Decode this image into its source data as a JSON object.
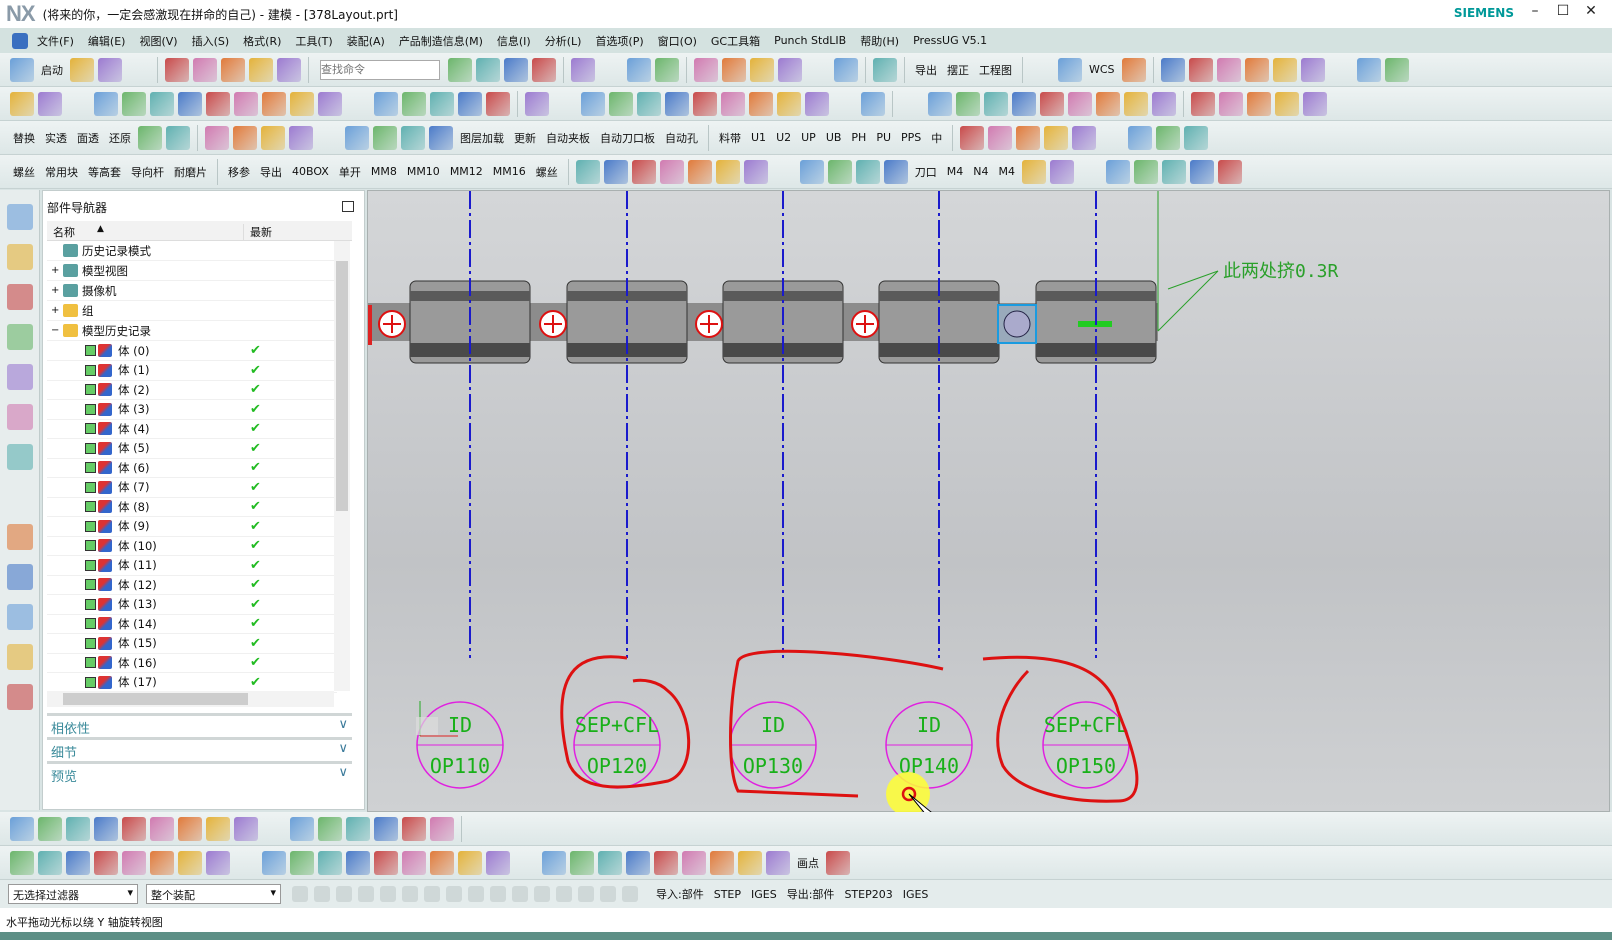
{
  "app": {
    "logo": "NX",
    "title": "(将来的你，一定会感激现在拼命的自己) - 建模 - [378Layout.prt]",
    "brand": "SIEMENS"
  },
  "window_controls": [
    "–",
    "☐",
    "✕"
  ],
  "menu": [
    "文件(F)",
    "编辑(E)",
    "视图(V)",
    "插入(S)",
    "格式(R)",
    "工具(T)",
    "装配(A)",
    "产品制造信息(M)",
    "信息(I)",
    "分析(L)",
    "首选项(P)",
    "窗口(O)",
    "GC工具箱",
    "Punch StdLIB",
    "帮助(H)",
    "PressUG V5.1"
  ],
  "toolbar1": {
    "start": "启动",
    "search_placeholder": "查找命令",
    "labels": [
      "导出",
      "摆正",
      "工程图",
      "WCS"
    ]
  },
  "toolbar3": {
    "left": [
      "替换",
      "实透",
      "面透",
      "还原"
    ],
    "labels": [
      "图层加载",
      "更新",
      "自动夹板",
      "自动刀口板",
      "自动孔",
      "料带",
      "U1",
      "U2",
      "UP",
      "UB",
      "PH",
      "PU",
      "PPS",
      "中"
    ]
  },
  "toolbar4": {
    "left": [
      "螺丝",
      "常用块",
      "等高套",
      "导向杆",
      "耐磨片"
    ],
    "mid": [
      "移参",
      "导出",
      "40BOX",
      "单开",
      "MM8",
      "MM10",
      "MM12",
      "MM16",
      "螺丝"
    ],
    "right": [
      "刀口",
      "M4",
      "N4",
      "M4"
    ]
  },
  "navigator": {
    "title": "部件导航器",
    "col_name": "名称",
    "col_latest": "最新",
    "top_items": [
      "历史记录模式",
      "模型视图",
      "摄像机",
      "组",
      "模型历史记录"
    ],
    "bodies": [
      "体 (0)",
      "体 (1)",
      "体 (2)",
      "体 (3)",
      "体 (4)",
      "体 (5)",
      "体 (6)",
      "体 (7)",
      "体 (8)",
      "体 (9)",
      "体 (10)",
      "体 (11)",
      "体 (12)",
      "体 (13)",
      "体 (14)",
      "体 (15)",
      "体 (16)",
      "体 (17)"
    ],
    "panels": [
      "相依性",
      "细节",
      "预览"
    ]
  },
  "graphics": {
    "note": "此两处挤0.3R",
    "stations": [
      {
        "top": "ID",
        "bottom": "OP110"
      },
      {
        "top": "SEP+CFL",
        "bottom": "OP120"
      },
      {
        "top": "ID",
        "bottom": "OP130"
      },
      {
        "top": "ID",
        "bottom": "OP140"
      },
      {
        "top": "SEP+CFL",
        "bottom": "OP150"
      }
    ],
    "colors": {
      "centerline": "#1a1acc",
      "circle": "#e020e0",
      "label": "#18b018",
      "markup": "#dd1111",
      "note": "#2aa02a"
    }
  },
  "bottombar": {
    "labels": [
      "画点"
    ]
  },
  "filter": {
    "type_filter": "无选择过滤器",
    "scope": "整个装配",
    "import_label": "导入:部件",
    "import": [
      "STEP",
      "IGES"
    ],
    "export_label": "导出:部件",
    "export": [
      "STEP203",
      "IGES"
    ]
  },
  "status": "水平拖动光标以绕 Y 轴旋转视图"
}
